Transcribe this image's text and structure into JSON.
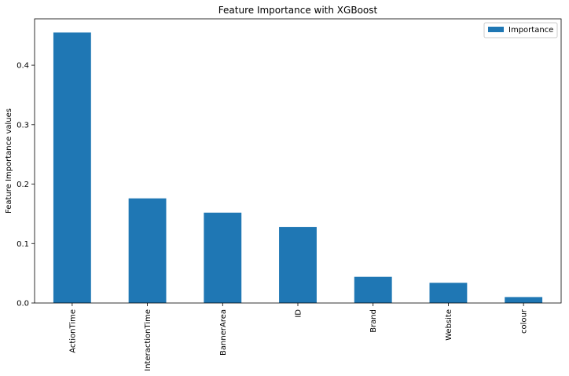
{
  "chart_data": {
    "type": "bar",
    "title": "Feature Importance with XGBoost",
    "xlabel": "",
    "ylabel": "Feature Importance values",
    "categories": [
      "ActionTime",
      "InteractionTime",
      "BannerArea",
      "ID",
      "Brand",
      "Website",
      "colour"
    ],
    "series": [
      {
        "name": "Importance",
        "values": [
          0.455,
          0.176,
          0.152,
          0.128,
          0.044,
          0.034,
          0.01
        ]
      }
    ],
    "ylim": [
      0,
      0.478
    ],
    "yticks": [
      0.0,
      0.1,
      0.2,
      0.3,
      0.4
    ],
    "ytick_labels": [
      "0.0",
      "0.1",
      "0.2",
      "0.3",
      "0.4"
    ],
    "grid": false,
    "legend_position": "top-right",
    "bar_color": "#1f77b4"
  }
}
